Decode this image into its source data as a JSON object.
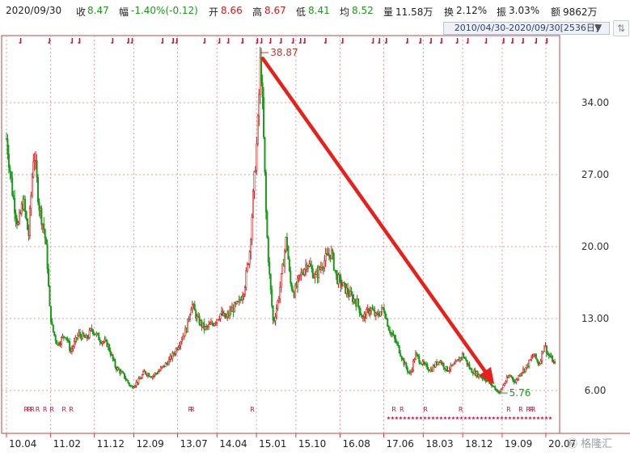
{
  "header": {
    "date": "2020/09/30",
    "close_label": "收",
    "close_value": "8.47",
    "change_label": "幅",
    "change_value": "-1.40%(-0.12)",
    "open_label": "开",
    "open_value": "8.66",
    "high_label": "高",
    "high_value": "8.67",
    "low_label": "低",
    "low_value": "8.41",
    "avg_label": "均",
    "avg_value": "8.52",
    "volume_label": "量",
    "volume_value": "11.58万",
    "turnover_label": "换",
    "turnover_value": "2.12%",
    "amplitude_label": "振",
    "amplitude_value": "3.03%",
    "amount_label": "额",
    "amount_value": "9862万",
    "colors": {
      "up": "#d21b1b",
      "down": "#1a9a1a",
      "neutral": "#222222"
    }
  },
  "range_selector": {
    "label": "2010/04/30-2020/09/30[2536日]",
    "dropdown_icon": "triangle-down-icon"
  },
  "watermark": "Ⓜ 格隆汇",
  "chart_data": {
    "type": "candlestick",
    "ylim": [
      3.0,
      41.0
    ],
    "yticks": [
      6.0,
      13.0,
      20.0,
      27.0,
      34.0
    ],
    "ytick_labels": [
      "6.00",
      "13.00",
      "20.00",
      "27.00",
      "34.00"
    ],
    "x_start": 2010.33,
    "x_end": 2020.75,
    "xticks": [
      2010.33,
      2011.17,
      2012.0,
      2012.75,
      2013.58,
      2014.33,
      2015.08,
      2015.83,
      2016.67,
      2017.5,
      2018.25,
      2019.0,
      2019.75,
      2020.58
    ],
    "xtick_labels": [
      "10.04",
      "11.02",
      "11.12",
      "12.09",
      "13.07",
      "14.04",
      "15.01",
      "15.10",
      "16.08",
      "17.06",
      "18.03",
      "18.12",
      "19.09",
      "20.07"
    ],
    "grid": true,
    "price_path": [
      [
        2010.33,
        30.5
      ],
      [
        2010.45,
        25.0
      ],
      [
        2010.55,
        22.0
      ],
      [
        2010.65,
        24.5
      ],
      [
        2010.75,
        21.0
      ],
      [
        2010.85,
        29.5
      ],
      [
        2010.95,
        24.0
      ],
      [
        2011.05,
        21.5
      ],
      [
        2011.1,
        19.0
      ],
      [
        2011.15,
        14.0
      ],
      [
        2011.2,
        12.0
      ],
      [
        2011.3,
        10.5
      ],
      [
        2011.45,
        11.5
      ],
      [
        2011.55,
        9.8
      ],
      [
        2011.7,
        11.5
      ],
      [
        2011.85,
        11.0
      ],
      [
        2011.95,
        12.0
      ],
      [
        2012.1,
        11.0
      ],
      [
        2012.25,
        10.5
      ],
      [
        2012.4,
        8.3
      ],
      [
        2012.55,
        7.5
      ],
      [
        2012.7,
        6.3
      ],
      [
        2012.85,
        7.0
      ],
      [
        2012.95,
        7.8
      ],
      [
        2013.1,
        7.4
      ],
      [
        2013.25,
        8.0
      ],
      [
        2013.4,
        8.8
      ],
      [
        2013.5,
        9.5
      ],
      [
        2013.6,
        10.5
      ],
      [
        2013.75,
        12.0
      ],
      [
        2013.85,
        14.5
      ],
      [
        2013.95,
        13.0
      ],
      [
        2014.1,
        12.0
      ],
      [
        2014.25,
        12.5
      ],
      [
        2014.4,
        13.5
      ],
      [
        2014.5,
        13.0
      ],
      [
        2014.6,
        13.8
      ],
      [
        2014.75,
        14.5
      ],
      [
        2014.85,
        16.0
      ],
      [
        2014.95,
        19.5
      ],
      [
        2015.02,
        25.0
      ],
      [
        2015.1,
        31.0
      ],
      [
        2015.16,
        38.87
      ],
      [
        2015.22,
        30.0
      ],
      [
        2015.27,
        22.0
      ],
      [
        2015.33,
        17.0
      ],
      [
        2015.4,
        12.5
      ],
      [
        2015.5,
        15.0
      ],
      [
        2015.58,
        18.0
      ],
      [
        2015.65,
        21.0
      ],
      [
        2015.72,
        16.5
      ],
      [
        2015.8,
        15.5
      ],
      [
        2015.9,
        17.0
      ],
      [
        2016.05,
        18.5
      ],
      [
        2016.2,
        17.0
      ],
      [
        2016.35,
        18.5
      ],
      [
        2016.5,
        19.5
      ],
      [
        2016.6,
        17.0
      ],
      [
        2016.75,
        16.0
      ],
      [
        2016.9,
        15.0
      ],
      [
        2017.0,
        14.5
      ],
      [
        2017.1,
        13.0
      ],
      [
        2017.25,
        14.0
      ],
      [
        2017.35,
        13.2
      ],
      [
        2017.5,
        14.0
      ],
      [
        2017.6,
        12.0
      ],
      [
        2017.75,
        10.5
      ],
      [
        2017.9,
        8.5
      ],
      [
        2018.0,
        7.5
      ],
      [
        2018.1,
        9.5
      ],
      [
        2018.25,
        8.5
      ],
      [
        2018.4,
        8.0
      ],
      [
        2018.55,
        9.0
      ],
      [
        2018.7,
        8.0
      ],
      [
        2018.85,
        8.5
      ],
      [
        2019.0,
        9.5
      ],
      [
        2019.15,
        8.0
      ],
      [
        2019.3,
        7.5
      ],
      [
        2019.45,
        7.0
      ],
      [
        2019.6,
        6.3
      ],
      [
        2019.7,
        5.76
      ],
      [
        2019.8,
        6.8
      ],
      [
        2019.9,
        7.5
      ],
      [
        2020.0,
        6.8
      ],
      [
        2020.1,
        7.8
      ],
      [
        2020.2,
        8.2
      ],
      [
        2020.35,
        9.5
      ],
      [
        2020.45,
        8.5
      ],
      [
        2020.55,
        10.5
      ],
      [
        2020.62,
        9.5
      ],
      [
        2020.7,
        9.0
      ],
      [
        2020.75,
        8.47
      ]
    ],
    "annotations": [
      {
        "text": "38.87",
        "x": 2015.16,
        "y": 38.87,
        "color": "#c0392b"
      },
      {
        "text": "5.76",
        "x": 2019.7,
        "y": 5.76,
        "color": "#1a9a1a"
      }
    ],
    "trend_arrow": {
      "from": [
        2015.2,
        38.3
      ],
      "to": [
        2019.6,
        6.6
      ],
      "color": "#e8201c"
    },
    "top_markers": [
      2010.6,
      2011.15,
      2011.58,
      2011.72,
      2012.35,
      2012.65,
      2012.72,
      2013.3,
      2013.5,
      2013.57,
      2014.1,
      2014.38,
      2014.55,
      2014.82,
      2015.1,
      2015.18,
      2015.35,
      2015.55,
      2015.78,
      2015.92,
      2016.0,
      2016.4,
      2016.72,
      2017.3,
      2017.42,
      2017.55,
      2017.95,
      2018.2,
      2018.4,
      2018.6,
      2018.9,
      2019.1,
      2019.45,
      2019.78,
      2019.95,
      2020.15,
      2020.4,
      2020.6
    ],
    "bottom_r_markers": [
      2010.66,
      2010.72,
      2010.78,
      2010.88,
      2011.02,
      2011.15,
      2011.38,
      2011.52,
      2013.78,
      2013.82,
      2014.96,
      2017.65,
      2017.8,
      2018.25,
      2018.92,
      2019.83,
      2020.06,
      2020.2,
      2020.26,
      2020.3
    ],
    "star_band": {
      "from": 2017.55,
      "to": 2020.7
    }
  }
}
